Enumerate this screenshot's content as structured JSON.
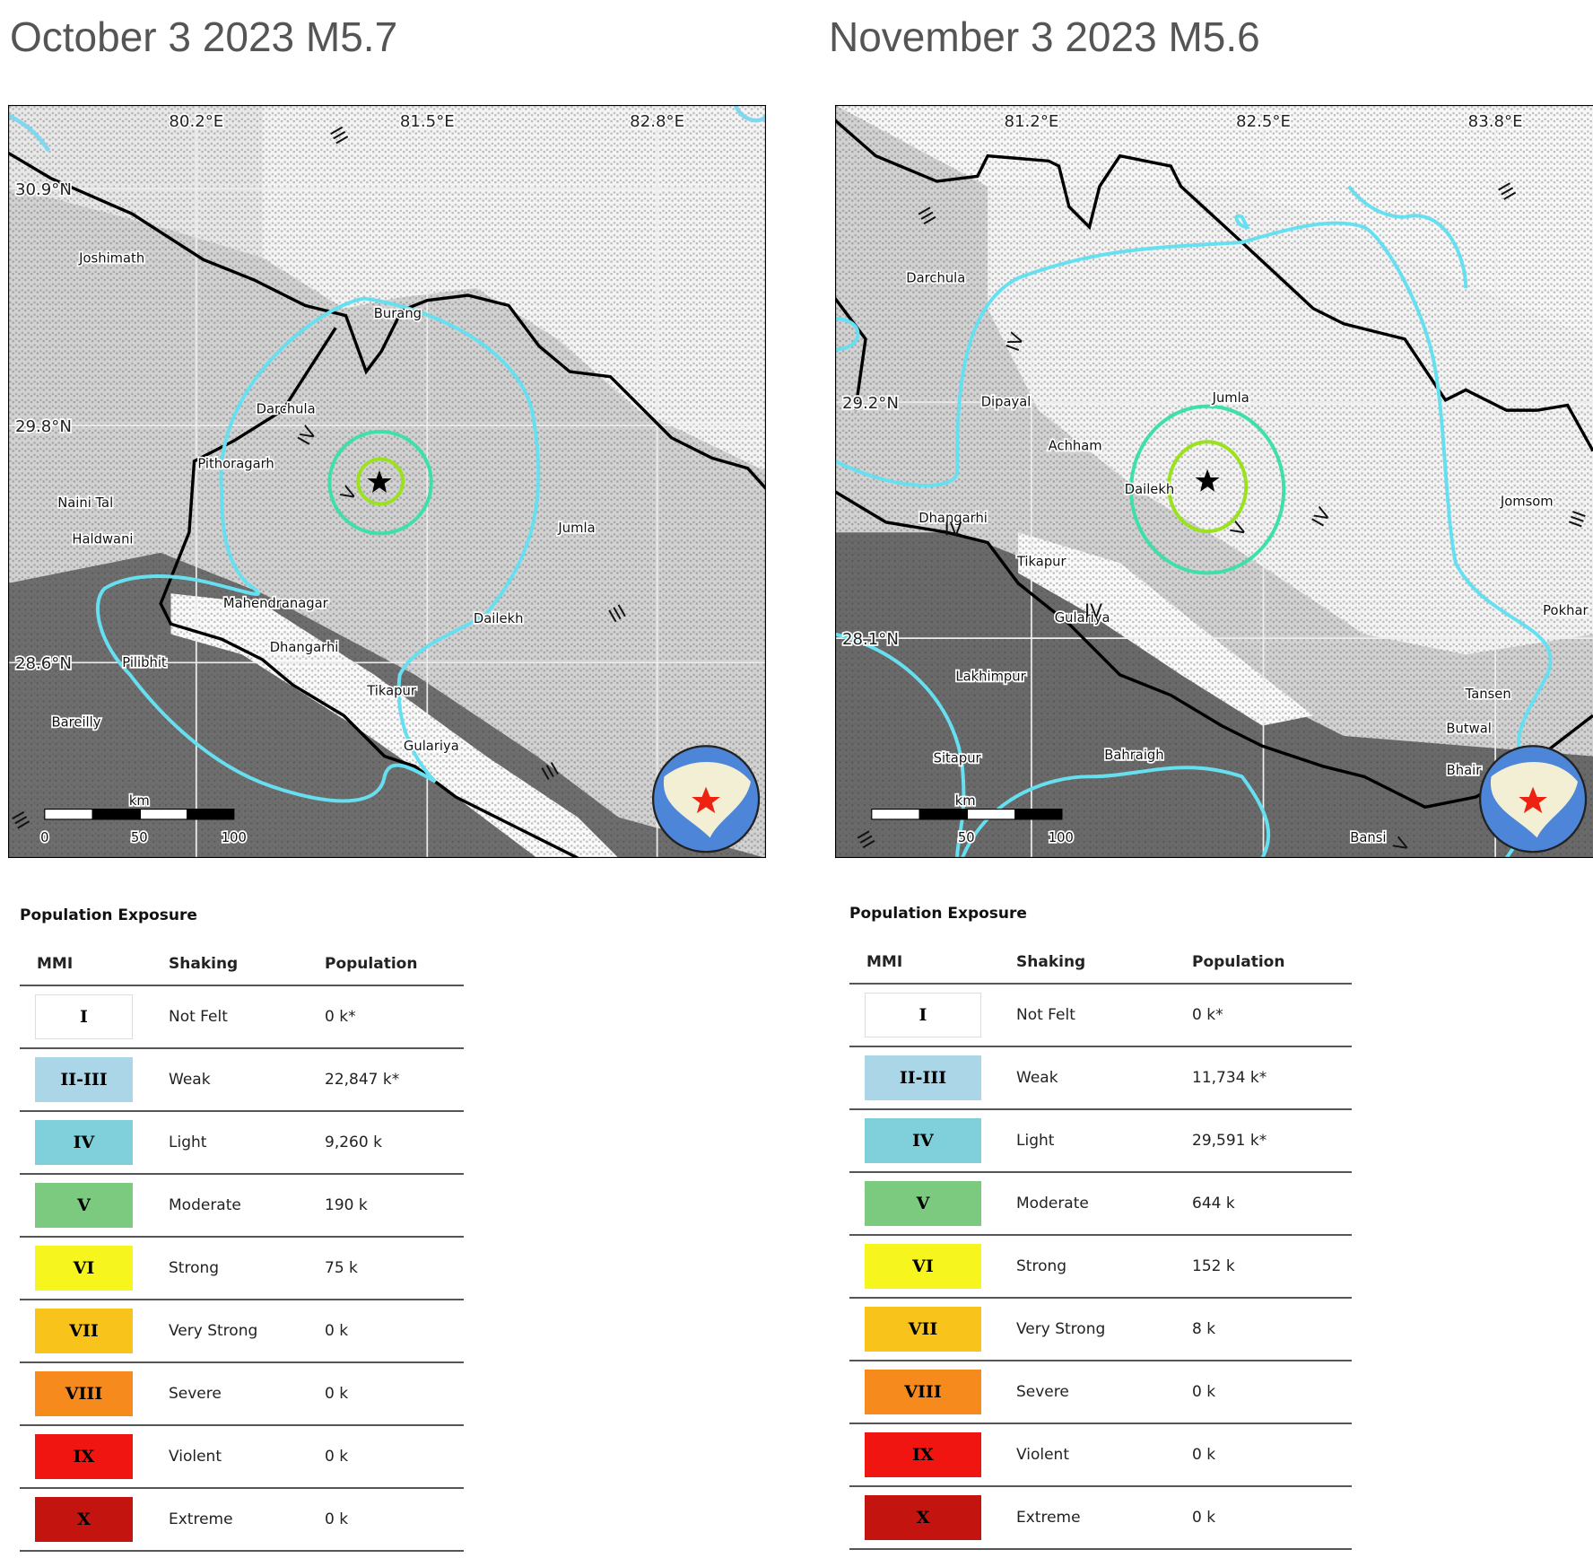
{
  "maps": [
    {
      "title": "October 3 2023 M5.7",
      "lon_labels": [
        "80.2°E",
        "81.5°E",
        "82.8°E"
      ],
      "lat_labels": [
        "30.9°N",
        "29.8°N",
        "28.6°N"
      ],
      "places": [
        "Joshimath",
        "Burang",
        "Darchula",
        "Pithoragarh",
        "Naini Tal",
        "Haldwani",
        "Mahendranagar",
        "Dhangarhi",
        "Pilibhit",
        "Bareilly",
        "Tikapur",
        "Gulariya",
        "Dailekh",
        "Jumla"
      ],
      "intensity_labels": [
        "III",
        "IV",
        "V",
        "III",
        "III",
        "III"
      ],
      "scale": {
        "unit": "km",
        "ticks": [
          "0",
          "50",
          "100"
        ]
      }
    },
    {
      "title": "November 3 2023 M5.6",
      "lon_labels": [
        "81.2°E",
        "82.5°E",
        "83.8°E"
      ],
      "lat_labels": [
        "29.2°N",
        "28.1°N"
      ],
      "places": [
        "Darchula",
        "Dipayal",
        "Jumla",
        "Achham",
        "Dailekh",
        "Dhangarhi",
        "Tikapur",
        "Gulariya",
        "Lakhimpur",
        "Sitapur",
        "Bahraigh",
        "Jomsom",
        "Pokhar",
        "Tansen",
        "Butwal",
        "Bhair",
        "Bansi"
      ],
      "intensity_labels": [
        "III",
        "IV",
        "III",
        "IV",
        "V",
        "IV",
        "IV",
        "III",
        "III",
        "V"
      ],
      "scale": {
        "unit": "km",
        "ticks": [
          "50",
          "100"
        ]
      }
    }
  ],
  "tables": [
    {
      "heading": "Population Exposure",
      "columns": [
        "MMI",
        "Shaking",
        "Population"
      ],
      "rows": [
        [
          "I",
          "Not Felt",
          "0 k*"
        ],
        [
          "II-III",
          "Weak",
          "22,847 k*"
        ],
        [
          "IV",
          "Light",
          "9,260 k"
        ],
        [
          "V",
          "Moderate",
          "190 k"
        ],
        [
          "VI",
          "Strong",
          "75 k"
        ],
        [
          "VII",
          "Very Strong",
          "0 k"
        ],
        [
          "VIII",
          "Severe",
          "0 k"
        ],
        [
          "IX",
          "Violent",
          "0 k"
        ],
        [
          "X",
          "Extreme",
          "0 k"
        ]
      ]
    },
    {
      "heading": "Population Exposure",
      "columns": [
        "MMI",
        "Shaking",
        "Population"
      ],
      "rows": [
        [
          "I",
          "Not Felt",
          "0 k*"
        ],
        [
          "II-III",
          "Weak",
          "11,734 k*"
        ],
        [
          "IV",
          "Light",
          "29,591 k*"
        ],
        [
          "V",
          "Moderate",
          "644 k"
        ],
        [
          "VI",
          "Strong",
          "152 k"
        ],
        [
          "VII",
          "Very Strong",
          "8 k"
        ],
        [
          "VIII",
          "Severe",
          "0 k"
        ],
        [
          "IX",
          "Violent",
          "0 k"
        ],
        [
          "X",
          "Extreme",
          "0 k"
        ]
      ]
    }
  ]
}
